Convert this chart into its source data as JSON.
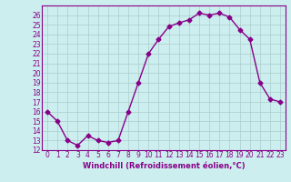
{
  "x": [
    0,
    1,
    2,
    3,
    4,
    5,
    6,
    7,
    8,
    9,
    10,
    11,
    12,
    13,
    14,
    15,
    16,
    17,
    18,
    19,
    20,
    21,
    22,
    23
  ],
  "y": [
    16,
    15,
    13,
    12.5,
    13.5,
    13,
    12.8,
    13,
    16,
    19,
    22,
    23.5,
    24.8,
    25.2,
    25.5,
    26.2,
    26,
    26.2,
    25.8,
    24.5,
    23.5,
    19,
    17.3,
    17
  ],
  "line_color": "#880088",
  "marker_color": "#880088",
  "bg_color": "#cceeee",
  "grid_color": "#aacccc",
  "xlabel": "Windchill (Refroidissement éolien,°C)",
  "ylim": [
    12,
    27
  ],
  "xlim_min": -0.5,
  "xlim_max": 23.5,
  "yticks": [
    12,
    13,
    14,
    15,
    16,
    17,
    18,
    19,
    20,
    21,
    22,
    23,
    24,
    25,
    26
  ],
  "xticks": [
    0,
    1,
    2,
    3,
    4,
    5,
    6,
    7,
    8,
    9,
    10,
    11,
    12,
    13,
    14,
    15,
    16,
    17,
    18,
    19,
    20,
    21,
    22,
    23
  ],
  "tick_fontsize": 5.5,
  "xlabel_fontsize": 6.0,
  "linewidth": 1.0,
  "markersize": 2.5
}
